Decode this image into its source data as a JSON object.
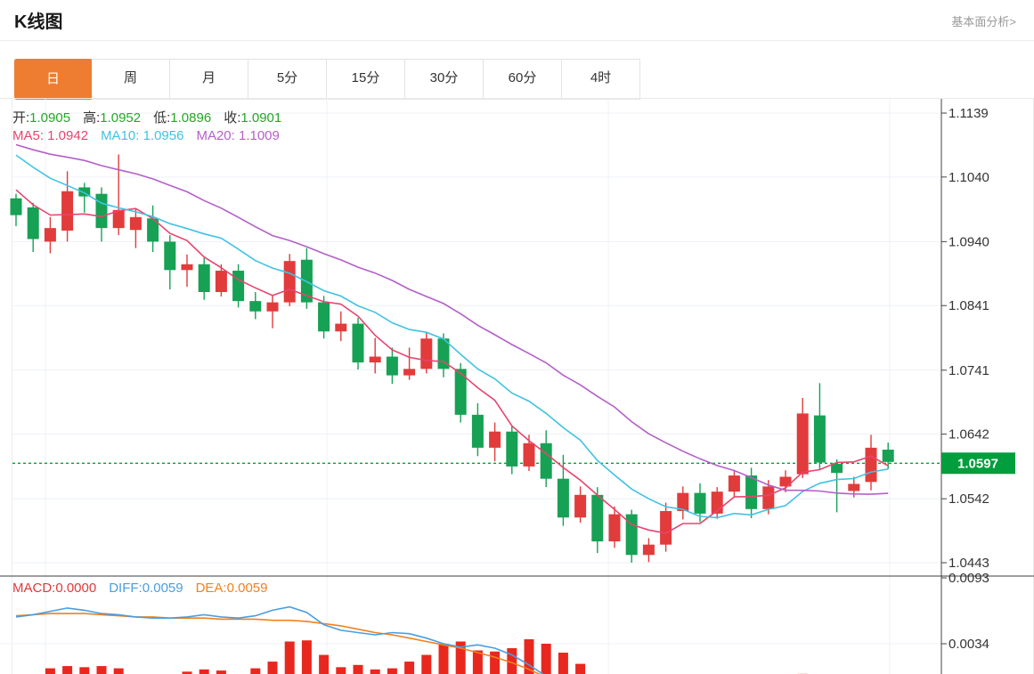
{
  "header": {
    "title": "K线图",
    "link": "基本面分析>"
  },
  "tabs": {
    "items": [
      "日",
      "周",
      "月",
      "5分",
      "15分",
      "30分",
      "60分",
      "4时"
    ],
    "active_index": 0
  },
  "legend": {
    "ohlc": [
      {
        "label": "开:",
        "value": "1.0905"
      },
      {
        "label": "高:",
        "value": "1.0952"
      },
      {
        "label": "低:",
        "value": "1.0896"
      },
      {
        "label": "收:",
        "value": "1.0901"
      }
    ],
    "ma": [
      {
        "text": "MA5: 1.0942",
        "color": "#e8446e"
      },
      {
        "text": "MA10: 1.0956",
        "color": "#3fc3e3"
      },
      {
        "text": "MA20: 1.1009",
        "color": "#b45fc9"
      }
    ]
  },
  "macd_legend": [
    {
      "text": "MACD:0.0000",
      "color": "#e0393b"
    },
    {
      "text": "DIFF:0.0059",
      "color": "#4a9ee0"
    },
    {
      "text": "DEA:0.0059",
      "color": "#f0811f"
    }
  ],
  "price_tag": {
    "value": "1.0597",
    "color": "#009e3c"
  },
  "colors": {
    "candle_up": "#e23b3b",
    "candle_down": "#16a154",
    "ma5": "#e8446e",
    "ma10": "#3fc3e3",
    "ma20": "#b45fc9",
    "diff_line": "#4a9ee0",
    "dea_line": "#f0811f",
    "macd_bar": "#e8281e",
    "tab_active": "#ee7d32",
    "grid": "#eef1f6",
    "axis": "#444444",
    "price_line": "#00a43c",
    "price_tag_bg": "#009e3c"
  },
  "chart_data": {
    "type": "candlestick",
    "title": "K线图 (日)",
    "y_axis_ticks": [
      "1.1139",
      "1.1040",
      "1.0940",
      "1.0841",
      "1.0741",
      "1.0642",
      "1.0542",
      "1.0443"
    ],
    "macd_axis_ticks": [
      "0.0093",
      "0.0034"
    ],
    "price_line_value": 1.0597,
    "grid": {
      "v_x": [
        51,
        367,
        683,
        999
      ]
    },
    "candles": [
      [
        1.1007,
        1.1014,
        1.0964,
        1.0981
      ],
      [
        1.0993,
        1.1,
        1.0924,
        1.0944
      ],
      [
        1.094,
        1.0978,
        1.0922,
        1.0961
      ],
      [
        1.0957,
        1.1049,
        1.094,
        1.1018
      ],
      [
        1.1024,
        1.1031,
        1.0985,
        1.101
      ],
      [
        1.1014,
        1.1024,
        1.094,
        1.0961
      ],
      [
        1.0961,
        1.1075,
        1.095,
        1.0989
      ],
      [
        1.0958,
        1.099,
        1.093,
        1.0978
      ],
      [
        1.0976,
        1.0996,
        1.0924,
        1.094
      ],
      [
        1.094,
        1.095,
        1.0866,
        1.0896
      ],
      [
        1.0896,
        1.092,
        1.087,
        1.0905
      ],
      [
        1.0905,
        1.0915,
        1.085,
        1.0862
      ],
      [
        1.0862,
        1.0905,
        1.0855,
        1.0895
      ],
      [
        1.0895,
        1.0905,
        1.0838,
        1.0848
      ],
      [
        1.0848,
        1.0862,
        1.082,
        1.0832
      ],
      [
        1.0832,
        1.0858,
        1.0806,
        1.0846
      ],
      [
        1.0846,
        1.0921,
        1.084,
        1.091
      ],
      [
        1.0912,
        1.093,
        1.0836,
        1.0846
      ],
      [
        1.0846,
        1.0856,
        1.079,
        1.0801
      ],
      [
        1.0801,
        1.0832,
        1.0786,
        1.0813
      ],
      [
        1.0813,
        1.0822,
        1.0742,
        1.0753
      ],
      [
        1.0753,
        1.0791,
        1.0736,
        1.0762
      ],
      [
        1.0762,
        1.0776,
        1.072,
        1.0733
      ],
      [
        1.0733,
        1.0776,
        1.0726,
        1.0743
      ],
      [
        1.0743,
        1.08,
        1.0736,
        1.079
      ],
      [
        1.079,
        1.0798,
        1.073,
        1.0743
      ],
      [
        1.0743,
        1.0752,
        1.066,
        1.0672
      ],
      [
        1.0672,
        1.069,
        1.0608,
        1.0621
      ],
      [
        1.0621,
        1.066,
        1.06,
        1.0646
      ],
      [
        1.0646,
        1.0655,
        1.058,
        1.0592
      ],
      [
        1.0592,
        1.0641,
        1.0585,
        1.0628
      ],
      [
        1.0628,
        1.0648,
        1.056,
        1.0573
      ],
      [
        1.0573,
        1.061,
        1.05,
        1.0513
      ],
      [
        1.0513,
        1.0561,
        1.0505,
        1.0548
      ],
      [
        1.0548,
        1.056,
        1.0458,
        1.0476
      ],
      [
        1.0476,
        1.053,
        1.0466,
        1.0518
      ],
      [
        1.0518,
        1.0525,
        1.0443,
        1.0455
      ],
      [
        1.0455,
        1.0481,
        1.0444,
        1.0471
      ],
      [
        1.0471,
        1.0536,
        1.046,
        1.0523
      ],
      [
        1.0523,
        1.0561,
        1.051,
        1.0551
      ],
      [
        1.0551,
        1.0566,
        1.0506,
        1.0519
      ],
      [
        1.0519,
        1.056,
        1.0511,
        1.0553
      ],
      [
        1.0553,
        1.0586,
        1.0545,
        1.0578
      ],
      [
        1.0578,
        1.059,
        1.0512,
        1.0526
      ],
      [
        1.0526,
        1.0571,
        1.0518,
        1.0561
      ],
      [
        1.0561,
        1.0586,
        1.0552,
        1.0576
      ],
      [
        1.058,
        1.0698,
        1.0574,
        1.0674
      ],
      [
        1.0671,
        1.0721,
        1.0588,
        1.0598
      ],
      [
        1.0596,
        1.0603,
        1.0521,
        1.0582
      ],
      [
        1.0554,
        1.0576,
        1.0544,
        1.0565
      ],
      [
        1.0568,
        1.0641,
        1.0555,
        1.0621
      ],
      [
        1.0618,
        1.0629,
        1.0588,
        1.0599
      ]
    ],
    "ma_periods": [
      5,
      10,
      20
    ],
    "ma_prehistory": [
      1.11,
      1.11,
      1.111,
      1.111,
      1.112,
      1.112,
      1.11,
      1.11,
      1.11,
      1.11,
      1.1135,
      1.113,
      1.113,
      1.1125,
      1.112,
      1.106,
      1.104,
      1.1015,
      1.1005
    ],
    "macd": {
      "diff": [
        0.0058,
        0.006,
        0.0063,
        0.0066,
        0.0064,
        0.0061,
        0.006,
        0.0058,
        0.0057,
        0.0057,
        0.0058,
        0.006,
        0.0058,
        0.0057,
        0.0059,
        0.0064,
        0.0067,
        0.0062,
        0.0051,
        0.0046,
        0.0044,
        0.0042,
        0.0044,
        0.0043,
        0.0039,
        0.0034,
        0.0031,
        0.0033,
        0.003,
        0.0024,
        0.0015,
        0.0005,
        -0.0005,
        null,
        null,
        null,
        null,
        null,
        null,
        null,
        null,
        null,
        null,
        null,
        null,
        null,
        null,
        null,
        null,
        null,
        null,
        null
      ],
      "dea": [
        0.0059,
        0.006,
        0.0061,
        0.0061,
        0.0061,
        0.006,
        0.0059,
        0.0058,
        0.0058,
        0.0057,
        0.0057,
        0.0057,
        0.0056,
        0.0056,
        0.0056,
        0.0055,
        0.0055,
        0.0054,
        0.0052,
        0.005,
        0.0047,
        0.0044,
        0.0042,
        0.0039,
        0.0036,
        0.0033,
        0.003,
        0.0026,
        0.0022,
        0.0017,
        0.0011,
        0.0004,
        -0.0004,
        null,
        null,
        null,
        null,
        null,
        null,
        null,
        null,
        null,
        null,
        null,
        null,
        null,
        null,
        null,
        null,
        null,
        null,
        null
      ],
      "bars": [
        0,
        0,
        0.0012,
        0.0014,
        0.0013,
        0.0014,
        0.0012,
        0,
        0,
        0,
        0.0009,
        0.0011,
        0.001,
        0,
        0.0012,
        0.0018,
        0.0036,
        0.0037,
        0.0024,
        0.0013,
        0.0015,
        0.0011,
        0.0012,
        0.0018,
        0.0024,
        0.0034,
        0.0036,
        0.0028,
        0.0027,
        0.003,
        0.0038,
        0.0034,
        0.0026,
        0.0016,
        0,
        0,
        0,
        0,
        0,
        0,
        0,
        0,
        0,
        0,
        0,
        0,
        0.0007,
        0,
        0,
        0,
        0,
        0
      ]
    }
  }
}
